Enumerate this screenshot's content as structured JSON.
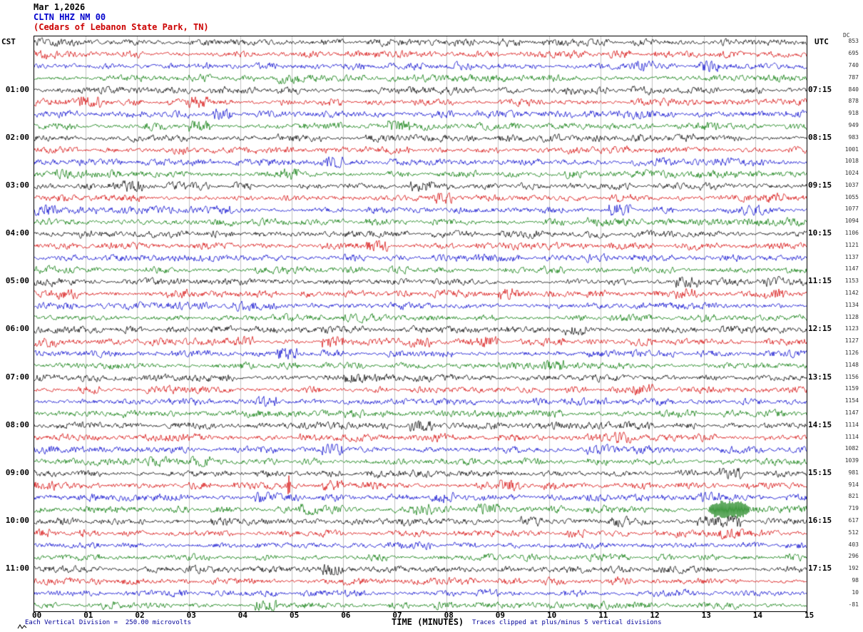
{
  "title": {
    "date": "Mar 1,2026",
    "station": "CLTN HHZ NM 00",
    "location": "(Cedars of Lebanon State Park, TN)"
  },
  "axes": {
    "left_header": "CST",
    "right_header": "UTC",
    "dc_header": "DC",
    "x_title": "TIME (MINUTES)",
    "x_ticks": [
      "00",
      "01",
      "02",
      "03",
      "04",
      "05",
      "06",
      "07",
      "08",
      "09",
      "10",
      "11",
      "12",
      "13",
      "14",
      "15"
    ]
  },
  "footer": {
    "left": "Each Vertical Division =  250.00 microvolts",
    "right": "Traces clipped at plus/minus 5 vertical divisions"
  },
  "icons": {
    "corner_mark": "small waveform zigzag glyph"
  },
  "colors": {
    "trace_cycle": [
      "#000000",
      "#d40000",
      "#0000cc",
      "#007700"
    ],
    "grid": "#c0c0c0",
    "station_text": "#0000cc",
    "location_text": "#cc0000",
    "footer_text": "#000099"
  },
  "chart_data": {
    "type": "line",
    "subtype": "helicorder-seismogram",
    "station": "CLTN HHZ NM 00",
    "station_location": "Cedars of Lebanon State Park, TN",
    "date": "Mar 1,2026",
    "rows": 48,
    "minutes_per_row": 15,
    "x_range_minutes": [
      0,
      15
    ],
    "first_row_start_cst": "00:00",
    "last_row_start_cst": "11:45",
    "timezone_left": "CST",
    "timezone_right": "UTC",
    "vertical_division_microvolts": 250.0,
    "clip_divisions": 5,
    "row_color_cycle": [
      "black",
      "red",
      "blue",
      "green"
    ],
    "cst_labels": [
      {
        "row": 4,
        "label": "01:00"
      },
      {
        "row": 8,
        "label": "02:00"
      },
      {
        "row": 12,
        "label": "03:00"
      },
      {
        "row": 16,
        "label": "04:00"
      },
      {
        "row": 20,
        "label": "05:00"
      },
      {
        "row": 24,
        "label": "06:00"
      },
      {
        "row": 28,
        "label": "07:00"
      },
      {
        "row": 32,
        "label": "08:00"
      },
      {
        "row": 36,
        "label": "09:00"
      },
      {
        "row": 40,
        "label": "10:00"
      },
      {
        "row": 44,
        "label": "11:00"
      }
    ],
    "utc_labels": [
      {
        "row": 4,
        "label": "07:15"
      },
      {
        "row": 8,
        "label": "08:15"
      },
      {
        "row": 12,
        "label": "09:15"
      },
      {
        "row": 16,
        "label": "10:15"
      },
      {
        "row": 20,
        "label": "11:15"
      },
      {
        "row": 24,
        "label": "12:15"
      },
      {
        "row": 28,
        "label": "13:15"
      },
      {
        "row": 32,
        "label": "14:15"
      },
      {
        "row": 36,
        "label": "15:15"
      },
      {
        "row": 40,
        "label": "16:15"
      },
      {
        "row": 44,
        "label": "17:15"
      }
    ],
    "dc_offsets": [
      853,
      695,
      740,
      787,
      840,
      878,
      918,
      949,
      983,
      1001,
      1018,
      1024,
      1037,
      1055,
      1077,
      1094,
      1106,
      1121,
      1137,
      1147,
      1153,
      1142,
      1134,
      1128,
      1123,
      1127,
      1126,
      1148,
      1156,
      1159,
      1154,
      1147,
      1114,
      1114,
      1082,
      1039,
      981,
      914,
      821,
      719,
      617,
      512,
      403,
      296,
      192,
      98,
      10,
      -81
    ],
    "events": [
      {
        "row": 37,
        "color": "red",
        "type": "spike",
        "minute": 4.95,
        "description": "brief large-amplitude transient spike"
      },
      {
        "row": 39,
        "color": "green",
        "type": "burst",
        "minute_start": 13.1,
        "minute_end": 13.9,
        "description": "high-amplitude clipped burst of activity"
      }
    ],
    "waveform": "continuous ambient seismic background noise on every 15-minute trace"
  }
}
